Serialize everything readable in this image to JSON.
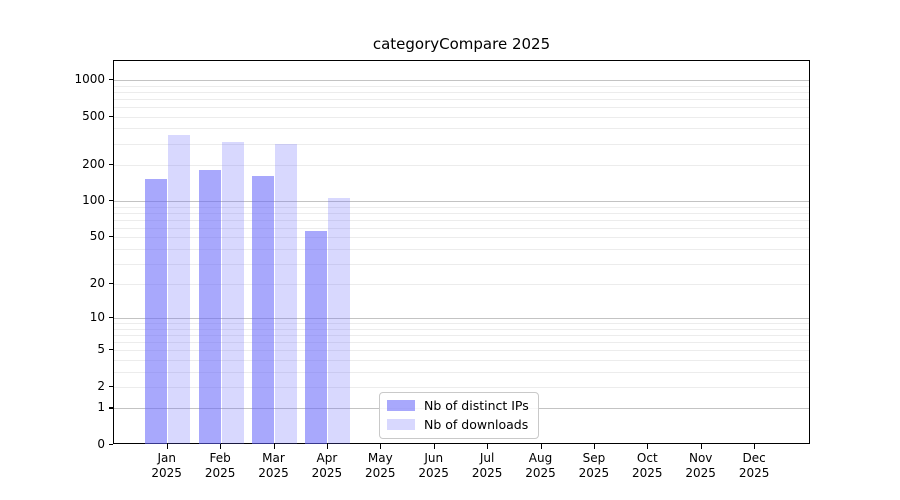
{
  "title": "categoryCompare 2025",
  "colors": {
    "distinct_ips_bar": "rgba(100,100,250,0.56)",
    "downloads_bar": "rgba(100,100,250,0.25)",
    "major_grid": "#c3c3c3",
    "minor_grid": "#ececec",
    "axis": "#000000"
  },
  "legend": {
    "items": [
      {
        "label": "Nb of distinct IPs"
      },
      {
        "label": "Nb of downloads"
      }
    ]
  },
  "chart_data": {
    "type": "bar",
    "title": "categoryCompare 2025",
    "categories": [
      "Jan",
      "Feb",
      "Mar",
      "Apr",
      "May",
      "Jun",
      "Jul",
      "Aug",
      "Sep",
      "Oct",
      "Nov",
      "Dec"
    ],
    "category_year": "2025",
    "series": [
      {
        "name": "Nb of distinct IPs",
        "color": "rgba(100,100,250,0.56)",
        "values": [
          153,
          183,
          161,
          56,
          null,
          null,
          null,
          null,
          null,
          null,
          null,
          null
        ]
      },
      {
        "name": "Nb of downloads",
        "color": "rgba(100,100,250,0.25)",
        "values": [
          352,
          308,
          296,
          106,
          null,
          null,
          null,
          null,
          null,
          null,
          null,
          null
        ]
      }
    ],
    "yticks": [
      0,
      1,
      2,
      5,
      10,
      20,
      50,
      100,
      200,
      500,
      1000
    ],
    "yscale": "log1p",
    "ylim": [
      0,
      1434
    ],
    "xlabel": "",
    "ylabel": "",
    "grid": true,
    "legend_position": "lower center"
  }
}
